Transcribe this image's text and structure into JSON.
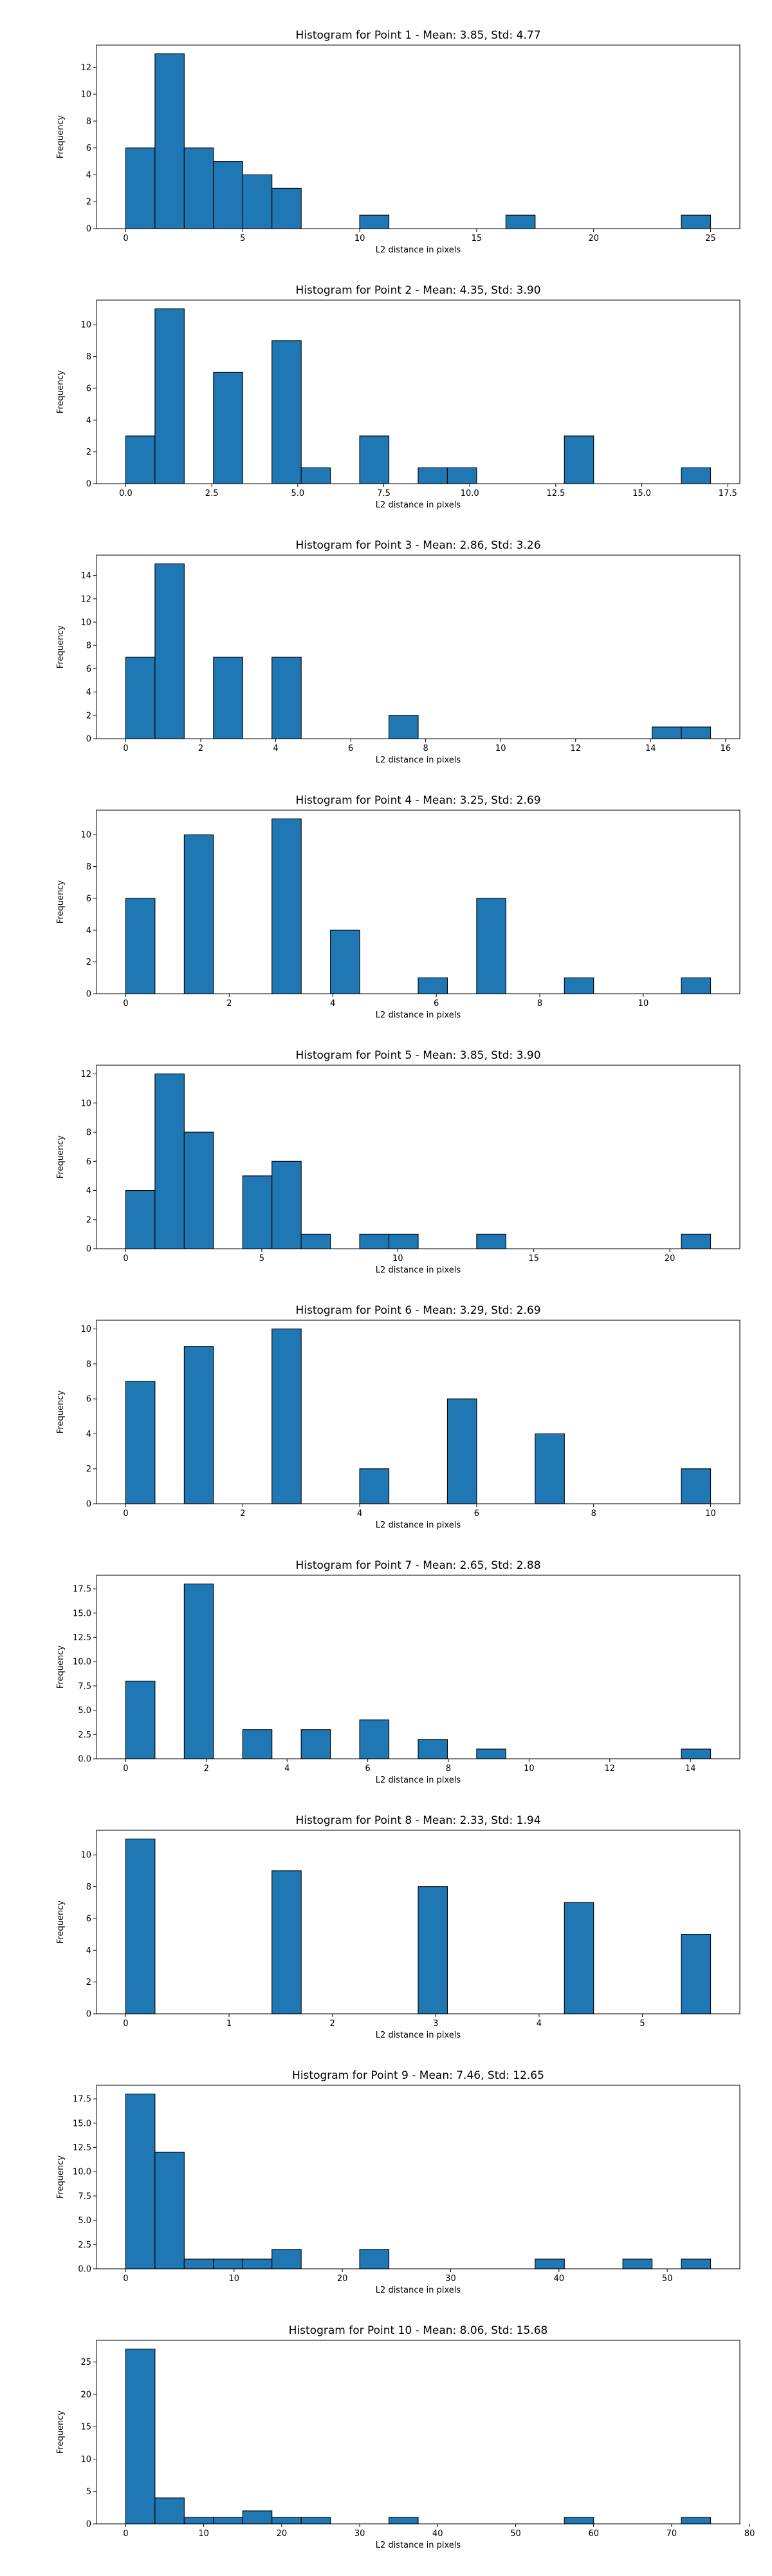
{
  "chart_data": [
    {
      "type": "bar",
      "title": "Histogram for Point 1 - Mean: 3.85, Std: 4.77",
      "xlabel": "L2 distance in pixels",
      "ylabel": "Frequency",
      "xlim": [
        -1.25,
        26.25
      ],
      "ylim": [
        0,
        13.65
      ],
      "xticks": [
        0,
        5,
        10,
        15,
        20,
        25
      ],
      "yticks": [
        0,
        2,
        4,
        6,
        8,
        10,
        12
      ],
      "bin_edges": [
        0,
        1.25,
        2.5,
        3.75,
        5,
        6.25,
        7.5,
        8.75,
        10,
        11.25,
        12.5,
        13.75,
        15,
        16.25,
        17.5,
        18.75,
        20,
        21.25,
        22.5,
        23.75,
        25
      ],
      "values": [
        6,
        13,
        6,
        5,
        4,
        3,
        0,
        0,
        1,
        0,
        0,
        0,
        0,
        1,
        0,
        0,
        0,
        0,
        0,
        1
      ]
    },
    {
      "type": "bar",
      "title": "Histogram for Point 2 - Mean: 4.35, Std: 3.90",
      "xlabel": "L2 distance in pixels",
      "ylabel": "Frequency",
      "xlim": [
        -0.85,
        17.85
      ],
      "ylim": [
        0,
        11.55
      ],
      "xticks": [
        0.0,
        2.5,
        5.0,
        7.5,
        10.0,
        12.5,
        15.0,
        17.5
      ],
      "yticks": [
        0,
        2,
        4,
        6,
        8,
        10
      ],
      "bin_edges": [
        0,
        0.85,
        1.7,
        2.55,
        3.4,
        4.25,
        5.1,
        5.95,
        6.8,
        7.65,
        8.5,
        9.35,
        10.2,
        11.05,
        11.9,
        12.75,
        13.6,
        14.45,
        15.3,
        16.15,
        17
      ],
      "values": [
        3,
        11,
        0,
        7,
        0,
        9,
        1,
        0,
        3,
        0,
        1,
        1,
        0,
        0,
        0,
        3,
        0,
        0,
        0,
        1
      ]
    },
    {
      "type": "bar",
      "title": "Histogram for Point 3 - Mean: 2.86, Std: 3.26",
      "xlabel": "L2 distance in pixels",
      "ylabel": "Frequency",
      "xlim": [
        -0.78,
        16.38
      ],
      "ylim": [
        0,
        15.75
      ],
      "xticks": [
        0,
        2,
        4,
        6,
        8,
        10,
        12,
        14,
        16
      ],
      "yticks": [
        0,
        2,
        4,
        6,
        8,
        10,
        12,
        14
      ],
      "bin_edges": [
        0,
        0.78,
        1.56,
        2.34,
        3.12,
        3.9,
        4.68,
        5.46,
        6.24,
        7.02,
        7.8,
        8.58,
        9.36,
        10.14,
        10.92,
        11.7,
        12.48,
        13.26,
        14.04,
        14.82,
        15.6
      ],
      "values": [
        7,
        15,
        0,
        7,
        0,
        7,
        0,
        0,
        0,
        2,
        0,
        0,
        0,
        0,
        0,
        0,
        0,
        0,
        1,
        1
      ]
    },
    {
      "type": "bar",
      "title": "Histogram for Point 4 - Mean: 3.25, Std: 2.69",
      "xlabel": "L2 distance in pixels",
      "ylabel": "Frequency",
      "xlim": [
        -0.565,
        11.865
      ],
      "ylim": [
        0,
        11.55
      ],
      "xticks": [
        0,
        2,
        4,
        6,
        8,
        10
      ],
      "yticks": [
        0,
        2,
        4,
        6,
        8,
        10
      ],
      "bin_edges": [
        0,
        0.565,
        1.13,
        1.695,
        2.26,
        2.825,
        3.39,
        3.955,
        4.52,
        5.085,
        5.65,
        6.215,
        6.78,
        7.345,
        7.91,
        8.475,
        9.04,
        9.605,
        10.17,
        10.735,
        11.3
      ],
      "values": [
        6,
        0,
        10,
        0,
        0,
        11,
        0,
        4,
        0,
        0,
        1,
        0,
        6,
        0,
        0,
        1,
        0,
        0,
        0,
        1
      ]
    },
    {
      "type": "bar",
      "title": "Histogram for Point 5 - Mean: 3.85, Std: 3.90",
      "xlabel": "L2 distance in pixels",
      "ylabel": "Frequency",
      "xlim": [
        -1.075,
        22.575
      ],
      "ylim": [
        0,
        12.6
      ],
      "xticks": [
        0,
        5,
        10,
        15,
        20
      ],
      "yticks": [
        0,
        2,
        4,
        6,
        8,
        10,
        12
      ],
      "bin_edges": [
        0,
        1.075,
        2.15,
        3.225,
        4.3,
        5.375,
        6.45,
        7.525,
        8.6,
        9.675,
        10.75,
        11.825,
        12.9,
        13.975,
        15.05,
        16.125,
        17.2,
        18.275,
        19.35,
        20.425,
        21.5
      ],
      "values": [
        4,
        12,
        8,
        0,
        5,
        6,
        1,
        0,
        1,
        1,
        0,
        0,
        1,
        0,
        0,
        0,
        0,
        0,
        0,
        1
      ]
    },
    {
      "type": "bar",
      "title": "Histogram for Point 6 - Mean: 3.29, Std: 2.69",
      "xlabel": "L2 distance in pixels",
      "ylabel": "Frequency",
      "xlim": [
        -0.5,
        10.5
      ],
      "ylim": [
        0,
        10.5
      ],
      "xticks": [
        0,
        2,
        4,
        6,
        8,
        10
      ],
      "yticks": [
        0,
        2,
        4,
        6,
        8,
        10
      ],
      "bin_edges": [
        0,
        0.5,
        1,
        1.5,
        2,
        2.5,
        3,
        3.5,
        4,
        4.5,
        5,
        5.5,
        6,
        6.5,
        7,
        7.5,
        8,
        8.5,
        9,
        9.5,
        10
      ],
      "values": [
        7,
        0,
        9,
        0,
        0,
        10,
        0,
        0,
        2,
        0,
        0,
        6,
        0,
        0,
        4,
        0,
        0,
        0,
        0,
        2
      ]
    },
    {
      "type": "bar",
      "title": "Histogram for Point 7 - Mean: 2.65, Std: 2.88",
      "xlabel": "L2 distance in pixels",
      "ylabel": "Frequency",
      "xlim": [
        -0.725,
        15.225
      ],
      "ylim": [
        0,
        18.9
      ],
      "xticks": [
        0,
        2,
        4,
        6,
        8,
        10,
        12,
        14
      ],
      "yticks": [
        0.0,
        2.5,
        5.0,
        7.5,
        10.0,
        12.5,
        15.0,
        17.5
      ],
      "bin_edges": [
        0,
        0.725,
        1.45,
        2.175,
        2.9,
        3.625,
        4.35,
        5.075,
        5.8,
        6.525,
        7.25,
        7.975,
        8.7,
        9.425,
        10.15,
        10.875,
        11.6,
        12.325,
        13.05,
        13.775,
        14.5
      ],
      "values": [
        8,
        0,
        18,
        0,
        3,
        0,
        3,
        0,
        4,
        0,
        2,
        0,
        1,
        0,
        0,
        0,
        0,
        0,
        0,
        1
      ]
    },
    {
      "type": "bar",
      "title": "Histogram for Point 8 - Mean: 2.33, Std: 1.94",
      "xlabel": "L2 distance in pixels",
      "ylabel": "Frequency",
      "xlim": [
        -0.283,
        5.943
      ],
      "ylim": [
        0,
        11.55
      ],
      "xticks": [
        0,
        1,
        2,
        3,
        4,
        5
      ],
      "yticks": [
        0,
        2,
        4,
        6,
        8,
        10
      ],
      "bin_edges": [
        0,
        0.283,
        0.566,
        0.849,
        1.132,
        1.415,
        1.698,
        1.981,
        2.264,
        2.547,
        2.83,
        3.113,
        3.396,
        3.679,
        3.962,
        4.245,
        4.528,
        4.811,
        5.094,
        5.377,
        5.66
      ],
      "values": [
        11,
        0,
        0,
        0,
        0,
        9,
        0,
        0,
        0,
        0,
        8,
        0,
        0,
        0,
        0,
        7,
        0,
        0,
        0,
        5
      ]
    },
    {
      "type": "bar",
      "title": "Histogram for Point 9 - Mean: 7.46, Std: 12.65",
      "xlabel": "L2 distance in pixels",
      "ylabel": "Frequency",
      "xlim": [
        -2.7,
        56.7
      ],
      "ylim": [
        0,
        18.9
      ],
      "xticks": [
        0,
        10,
        20,
        30,
        40,
        50
      ],
      "yticks": [
        0.0,
        2.5,
        5.0,
        7.5,
        10.0,
        12.5,
        15.0,
        17.5
      ],
      "bin_edges": [
        0,
        2.7,
        5.4,
        8.1,
        10.8,
        13.5,
        16.2,
        18.9,
        21.6,
        24.3,
        27,
        29.7,
        32.4,
        35.1,
        37.8,
        40.5,
        43.2,
        45.9,
        48.6,
        51.3,
        54
      ],
      "values": [
        18,
        12,
        1,
        1,
        1,
        2,
        0,
        0,
        2,
        0,
        0,
        0,
        0,
        0,
        1,
        0,
        0,
        1,
        0,
        1
      ]
    },
    {
      "type": "bar",
      "title": "Histogram for Point 10 - Mean: 8.06, Std: 15.68",
      "xlabel": "L2 distance in pixels",
      "ylabel": "Frequency",
      "xlim": [
        -3.75,
        78.75
      ],
      "ylim": [
        0,
        28.35
      ],
      "xticks": [
        0,
        10,
        20,
        30,
        40,
        50,
        60,
        70,
        80
      ],
      "yticks": [
        0,
        5,
        10,
        15,
        20,
        25
      ],
      "bin_edges": [
        0,
        3.75,
        7.5,
        11.25,
        15,
        18.75,
        22.5,
        26.25,
        30,
        33.75,
        37.5,
        41.25,
        45,
        48.75,
        52.5,
        56.25,
        60,
        63.75,
        67.5,
        71.25,
        75
      ],
      "values": [
        27,
        4,
        1,
        1,
        2,
        1,
        1,
        0,
        0,
        1,
        0,
        0,
        0,
        0,
        0,
        1,
        0,
        0,
        0,
        1
      ]
    }
  ]
}
